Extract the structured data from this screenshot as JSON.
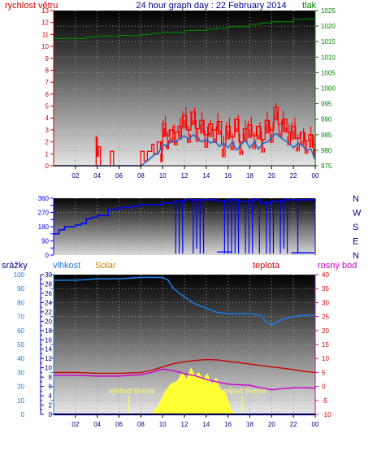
{
  "header": {
    "left_label": "rychlost větru",
    "title": "24 hour graph day : 22 February 2014",
    "right_label": "tlak"
  },
  "wind_direction_letters": [
    "N",
    "W",
    "S",
    "E",
    "N"
  ],
  "bottom_labels": {
    "rain": "srážky",
    "humidity": "vlhkost",
    "solar": "Solar",
    "temperature": "teplota",
    "dewpoint": "rosný bod",
    "sunrise": "východ slunce",
    "sunset": "západ slunce"
  },
  "colors": {
    "wind_gust": "#ff0000",
    "wind_avg": "#1f6fd0",
    "pressure": "#008000",
    "direction": "#0000ff",
    "humidity": "#1e7be0",
    "temperature": "#cc0000",
    "dewpoint": "#cc00cc",
    "solar": "#ffff33",
    "rain": "#0000aa",
    "left_axis": "#cc0000",
    "right_axis": "#008000",
    "blue_axis": "#0000ff",
    "purple_axis": "#cc00cc"
  },
  "chart_data": [
    {
      "type": "line",
      "name": "wind-pressure",
      "x_ticks": [
        "02",
        "04",
        "06",
        "08",
        "10",
        "12",
        "14",
        "16",
        "18",
        "20",
        "22",
        "00"
      ],
      "xlim": [
        0,
        24
      ],
      "y_left_ticks": [
        0,
        1,
        2,
        3,
        4,
        5,
        6,
        7,
        8,
        9,
        10,
        11,
        12,
        13
      ],
      "ylim_left": [
        0,
        13
      ],
      "y_right_ticks": [
        975,
        980,
        985,
        990,
        995,
        1000,
        1005,
        1010,
        1015,
        1020,
        1025
      ],
      "ylim_right": [
        975,
        1025
      ],
      "series": [
        {
          "key": "gust",
          "axis": "left",
          "x": [
            0,
            1,
            2,
            3,
            3.8,
            3.9,
            4.0,
            4.1,
            4.3,
            4.5,
            5.0,
            5.2,
            5.3,
            5.5,
            6.0,
            7.0,
            7.8,
            8.0,
            8.3,
            8.6,
            9.0,
            9.2,
            9.5,
            9.8,
            10.0,
            10.3,
            10.6,
            11.0,
            11.4,
            11.8,
            12.2,
            12.6,
            13.0,
            13.4,
            13.8,
            14.2,
            14.6,
            15.0,
            15.4,
            15.8,
            16.2,
            16.6,
            17.0,
            17.4,
            17.8,
            18.2,
            18.6,
            19.0,
            19.4,
            19.8,
            20.2,
            20.6,
            21.0,
            21.4,
            21.8,
            22.2,
            22.6,
            23.0,
            23.4,
            23.8,
            24.0
          ],
          "values": [
            0,
            0,
            0,
            0,
            0,
            2.4,
            0.8,
            1.6,
            0,
            0,
            0,
            1.2,
            1.2,
            0,
            0,
            0,
            0,
            1.2,
            0.4,
            1.2,
            1.8,
            1.0,
            2.0,
            1.4,
            3.5,
            2.5,
            3.0,
            2.8,
            3.3,
            4.2,
            3.0,
            4.5,
            3.1,
            3.8,
            2.6,
            3.5,
            3.0,
            3.7,
            1.8,
            3.3,
            2.4,
            3.9,
            2.0,
            3.1,
            3.4,
            2.5,
            3.3,
            2.2,
            3.8,
            3.0,
            4.9,
            3.5,
            3.9,
            2.8,
            3.3,
            2.3,
            2.8,
            2.1,
            2.6,
            1.8,
            0.6
          ]
        },
        {
          "key": "average",
          "axis": "left",
          "x": [
            0,
            4,
            8,
            8.6,
            9.2,
            9.6,
            10.0,
            10.4,
            10.8,
            11.2,
            11.6,
            12.0,
            12.4,
            12.8,
            13.2,
            13.6,
            14.0,
            14.4,
            14.8,
            15.2,
            15.6,
            16.0,
            16.4,
            16.8,
            17.2,
            17.6,
            18.0,
            18.4,
            18.8,
            19.2,
            19.6,
            20.0,
            20.4,
            20.8,
            21.2,
            21.6,
            22.0,
            22.4,
            22.8,
            23.2,
            23.6,
            24.0
          ],
          "values": [
            0,
            0,
            0,
            0.4,
            0.9,
            1.0,
            1.8,
            1.6,
            2.1,
            2.0,
            2.3,
            2.5,
            2.2,
            2.6,
            2.3,
            2.0,
            2.2,
            1.9,
            2.1,
            1.6,
            1.9,
            1.5,
            2.0,
            1.3,
            1.8,
            2.1,
            1.5,
            2.0,
            1.4,
            1.9,
            2.0,
            2.4,
            2.7,
            2.4,
            2.1,
            1.9,
            1.5,
            1.9,
            1.7,
            1.3,
            1.4,
            0.5
          ]
        },
        {
          "key": "pressure",
          "axis": "right",
          "x": [
            0,
            2,
            3,
            4,
            6,
            8,
            9,
            10,
            12,
            14,
            15,
            16,
            18,
            19,
            20,
            22,
            23,
            24
          ],
          "values": [
            1016,
            1016,
            1016.5,
            1016.8,
            1017,
            1017.3,
            1017.6,
            1018,
            1018.6,
            1019,
            1019.3,
            1019.8,
            1020.6,
            1021,
            1021.4,
            1022.2,
            1022.3,
            1022.3
          ]
        }
      ]
    },
    {
      "type": "scatter",
      "name": "wind-direction",
      "xlim": [
        0,
        24
      ],
      "y_ticks": [
        0,
        45,
        90,
        135,
        180,
        225,
        270,
        315,
        360
      ],
      "ylim": [
        0,
        360
      ],
      "series": [
        {
          "key": "direction",
          "x": [
            0,
            0.5,
            1,
            1.5,
            2,
            2.5,
            3,
            3.5,
            4,
            5,
            6,
            7,
            8,
            9,
            10,
            10.5,
            11,
            11.5,
            12,
            13,
            14,
            15,
            16,
            17,
            18,
            19,
            20,
            21,
            22,
            23,
            24
          ],
          "values": [
            135,
            160,
            180,
            180,
            190,
            200,
            230,
            240,
            250,
            290,
            300,
            310,
            320,
            320,
            330,
            330,
            340,
            340,
            350,
            350,
            350,
            340,
            350,
            340,
            350,
            330,
            340,
            350,
            350,
            350,
            340
          ]
        }
      ]
    },
    {
      "type": "line",
      "name": "temp-humidity-solar",
      "xlim": [
        0,
        24
      ],
      "y_left_ticks": [
        0,
        10,
        20,
        30,
        40,
        50,
        60,
        70,
        80,
        90,
        100
      ],
      "ylim_left": [
        0,
        100
      ],
      "y_rain_ticks": [
        0,
        2,
        4,
        6,
        8,
        10,
        12,
        14,
        16,
        18,
        20,
        22,
        24,
        26,
        28,
        30
      ],
      "ylim_rain": [
        0,
        30
      ],
      "y_right_ticks": [
        -10,
        -5,
        0,
        5,
        10,
        15,
        20,
        25,
        30,
        35,
        40
      ],
      "ylim_right": [
        -10,
        40
      ],
      "series": [
        {
          "key": "humidity",
          "axis": "left",
          "x": [
            0,
            2,
            4,
            6,
            8,
            9,
            10,
            10.5,
            11,
            12,
            13,
            14,
            15,
            16,
            17,
            18,
            19,
            19.5,
            20,
            21,
            22,
            23,
            24
          ],
          "values": [
            96,
            96,
            97,
            97,
            98,
            98,
            98,
            96,
            90,
            84,
            79,
            76,
            73,
            72,
            72,
            72,
            71,
            66,
            64,
            68,
            70,
            71,
            71
          ]
        },
        {
          "key": "temperature",
          "axis": "right",
          "x": [
            0,
            2,
            4,
            6,
            8,
            9,
            10,
            11,
            12,
            13,
            14,
            15,
            16,
            17,
            18,
            19,
            20,
            21,
            22,
            23,
            24
          ],
          "values": [
            5.0,
            5.0,
            4.7,
            4.7,
            5.0,
            5.8,
            7.0,
            8.1,
            8.8,
            9.3,
            9.6,
            9.5,
            9.0,
            8.5,
            8.0,
            7.5,
            7.0,
            6.5,
            6.0,
            5.4,
            5.0
          ]
        },
        {
          "key": "dewpoint",
          "axis": "right",
          "x": [
            0,
            2,
            4,
            6,
            8,
            9,
            10,
            11,
            12,
            13,
            14,
            15,
            16,
            17,
            18,
            19,
            20,
            21,
            22,
            23,
            24
          ],
          "values": [
            4.0,
            4.0,
            3.7,
            3.7,
            4.2,
            5.0,
            6.2,
            5.6,
            4.6,
            3.8,
            2.5,
            1.6,
            0.8,
            0.6,
            0.4,
            -0.5,
            -1.2,
            -0.8,
            -0.5,
            -0.5,
            -0.6
          ]
        },
        {
          "key": "solar",
          "axis": "left",
          "x": [
            0,
            9,
            9.6,
            10.2,
            10.8,
            11.4,
            11.8,
            12.2,
            12.6,
            13.0,
            13.3,
            13.7,
            14.1,
            14.5,
            14.9,
            15.3,
            15.7,
            16.1,
            16.3,
            16.8,
            24
          ],
          "values": [
            0,
            0,
            6,
            16,
            22,
            24,
            30,
            25,
            33,
            27,
            30,
            25,
            29,
            21,
            26,
            18,
            16,
            8,
            3,
            0,
            0
          ]
        },
        {
          "key": "rain",
          "axis": "rain",
          "x": [
            0,
            24
          ],
          "values": [
            0,
            0
          ]
        }
      ],
      "sunrise_hour": 6.9,
      "sunset_hour": 17.3
    }
  ]
}
